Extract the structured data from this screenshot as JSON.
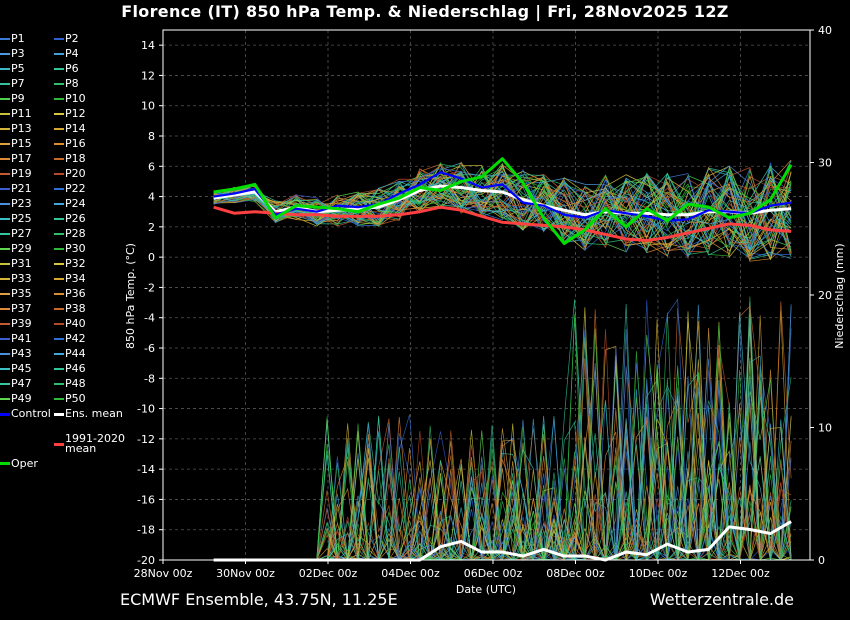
{
  "title": "Florence  (IT)  850 hPa Temp. & Niederschlag | Fri, 28Nov2025 12Z",
  "footer": {
    "left": "ECMWF Ensemble, 43.75N, 11.25E",
    "right": "Wetterzentrale.de"
  },
  "legend": [
    {
      "label": "P1",
      "color": "#3a7bd5"
    },
    {
      "label": "P2",
      "color": "#2f5fd0"
    },
    {
      "label": "P3",
      "color": "#4a9be0"
    },
    {
      "label": "P4",
      "color": "#3fa0d8"
    },
    {
      "label": "P5",
      "color": "#3cb8c8"
    },
    {
      "label": "P6",
      "color": "#2fc79a"
    },
    {
      "label": "P7",
      "color": "#35c0a0"
    },
    {
      "label": "P8",
      "color": "#2ebd6a"
    },
    {
      "label": "P9",
      "color": "#4fd04f"
    },
    {
      "label": "P10",
      "color": "#2fb93a"
    },
    {
      "label": "P11",
      "color": "#c8c23a"
    },
    {
      "label": "P12",
      "color": "#d4c640"
    },
    {
      "label": "P13",
      "color": "#d8b33a"
    },
    {
      "label": "P14",
      "color": "#d9a830"
    },
    {
      "label": "P15",
      "color": "#e0a040"
    },
    {
      "label": "P16",
      "color": "#d88c30"
    },
    {
      "label": "P17",
      "color": "#e08a3a"
    },
    {
      "label": "P18",
      "color": "#c96a28"
    },
    {
      "label": "P19",
      "color": "#c85a30"
    },
    {
      "label": "P20",
      "color": "#b54a2a"
    },
    {
      "label": "P21",
      "color": "#3a5fd0"
    },
    {
      "label": "P22",
      "color": "#2f6fd8"
    },
    {
      "label": "P23",
      "color": "#4a8fe0"
    },
    {
      "label": "P24",
      "color": "#3fa8d8"
    },
    {
      "label": "P25",
      "color": "#3cc0c8"
    },
    {
      "label": "P26",
      "color": "#2fc79a"
    },
    {
      "label": "P27",
      "color": "#35c8a0"
    },
    {
      "label": "P28",
      "color": "#2ebd6a"
    },
    {
      "label": "P29",
      "color": "#5fd84f"
    },
    {
      "label": "P30",
      "color": "#2fb93a"
    },
    {
      "label": "P31",
      "color": "#c8c23a"
    },
    {
      "label": "P32",
      "color": "#d4c640"
    },
    {
      "label": "P33",
      "color": "#d8b33a"
    },
    {
      "label": "P34",
      "color": "#d9a830"
    },
    {
      "label": "P35",
      "color": "#e0a040"
    },
    {
      "label": "P36",
      "color": "#d88c30"
    },
    {
      "label": "P37",
      "color": "#e08a3a"
    },
    {
      "label": "P38",
      "color": "#c96a28"
    },
    {
      "label": "P39",
      "color": "#c85a30"
    },
    {
      "label": "P40",
      "color": "#b54a2a"
    },
    {
      "label": "P41",
      "color": "#3a5fd0"
    },
    {
      "label": "P42",
      "color": "#2f6fd8"
    },
    {
      "label": "P43",
      "color": "#4a8fe0"
    },
    {
      "label": "P44",
      "color": "#3fa8d8"
    },
    {
      "label": "P45",
      "color": "#3cc0c8"
    },
    {
      "label": "P46",
      "color": "#2fc79a"
    },
    {
      "label": "P47",
      "color": "#35c8a0"
    },
    {
      "label": "P48",
      "color": "#2ebd6a"
    },
    {
      "label": "P49",
      "color": "#5fd84f"
    },
    {
      "label": "P50",
      "color": "#2fb93a"
    },
    {
      "label": "Control",
      "color": "#0000ff"
    },
    {
      "label": "Ens. mean",
      "color": "#ffffff"
    },
    {
      "label": "1991-2020\nmean",
      "color": "#ff4040"
    },
    {
      "label": "Oper",
      "color": "#00dd00"
    }
  ],
  "chart_data": {
    "type": "line",
    "xlabel": "Date (UTC)",
    "ylabel": "850 hPa Temp. (°C)",
    "y2label": "Niederschlag (mm)",
    "xticks": [
      "28Nov 00z",
      "30Nov 00z",
      "02Dec 00z",
      "04Dec 00z",
      "06Dec 00z",
      "08Dec 00z",
      "10Dec 00z",
      "12Dec 00z"
    ],
    "xlim_days": [
      0,
      14.8
    ],
    "ylim": [
      -20,
      15
    ],
    "yticks": [
      14,
      12,
      10,
      8,
      6,
      4,
      2,
      0,
      -2,
      -4,
      -6,
      -8,
      -10,
      -12,
      -14,
      -16,
      -18,
      -20
    ],
    "y2lim": [
      0,
      40
    ],
    "y2ticks": [
      40,
      30,
      20,
      10,
      0
    ],
    "grid": true,
    "series": [
      {
        "name": "Ens. mean",
        "color": "#ffffff",
        "x": [
          0.5,
          1.0,
          1.5,
          2.0,
          2.5,
          3.0,
          3.5,
          4.0,
          4.5,
          5.0,
          5.5,
          6.0,
          6.5,
          7.0,
          7.5,
          8.0,
          8.5,
          9.0,
          9.5,
          10.0,
          10.5,
          11.0,
          11.5,
          12.0,
          12.5,
          13.0,
          13.5,
          14.0,
          14.5
        ],
        "y": [
          3.9,
          4.1,
          4.3,
          3.0,
          3.3,
          3.0,
          3.1,
          3.2,
          3.3,
          3.8,
          4.4,
          4.7,
          4.6,
          4.4,
          4.3,
          3.8,
          3.4,
          3.1,
          2.8,
          3.0,
          2.9,
          2.9,
          2.8,
          2.8,
          3.0,
          3.0,
          2.9,
          3.1,
          3.2
        ]
      },
      {
        "name": "1991-2020\nmean",
        "color": "#ff4040",
        "x": [
          0.5,
          1.0,
          1.5,
          2.0,
          2.5,
          3.0,
          3.5,
          4.0,
          4.5,
          5.0,
          5.5,
          6.0,
          6.5,
          7.0,
          7.5,
          8.0,
          8.5,
          9.0,
          9.5,
          10.0,
          10.5,
          11.0,
          11.5,
          12.0,
          12.5,
          13.0,
          13.5,
          14.0,
          14.5
        ],
        "y": [
          3.3,
          2.9,
          3.0,
          2.9,
          2.8,
          2.8,
          2.7,
          2.7,
          2.7,
          2.8,
          3.0,
          3.3,
          3.1,
          2.7,
          2.3,
          2.2,
          2.1,
          2.0,
          1.8,
          1.5,
          1.2,
          1.1,
          1.3,
          1.6,
          1.9,
          2.2,
          2.1,
          1.8,
          1.7
        ]
      },
      {
        "name": "Control",
        "color": "#0000ff",
        "x": [
          0.5,
          1.0,
          1.5,
          2.0,
          2.5,
          3.0,
          3.5,
          4.0,
          4.5,
          5.0,
          5.5,
          6.0,
          6.5,
          7.0,
          7.5,
          8.0,
          8.5,
          9.0,
          9.5,
          10.0,
          10.5,
          11.0,
          11.5,
          12.0,
          12.5,
          13.0,
          13.5,
          14.0,
          14.5
        ],
        "y": [
          4.0,
          4.2,
          4.5,
          2.8,
          3.2,
          3.0,
          3.4,
          3.3,
          3.5,
          4.2,
          4.8,
          5.6,
          5.2,
          4.6,
          4.8,
          3.6,
          3.4,
          2.8,
          2.6,
          3.1,
          2.9,
          2.7,
          2.4,
          2.5,
          3.1,
          3.0,
          2.9,
          3.4,
          3.6
        ]
      },
      {
        "name": "Oper",
        "color": "#00dd00",
        "x": [
          0.5,
          1.0,
          1.5,
          2.0,
          2.5,
          3.0,
          3.5,
          4.0,
          4.5,
          5.0,
          5.5,
          6.0,
          6.5,
          7.0,
          7.5,
          8.0,
          8.5,
          9.0,
          9.5,
          10.0,
          10.5,
          11.0,
          11.5,
          12.0,
          12.5,
          13.0,
          13.5,
          14.0,
          14.5
        ],
        "y": [
          4.3,
          4.5,
          4.8,
          2.6,
          3.4,
          3.3,
          3.2,
          3.0,
          3.5,
          3.9,
          4.6,
          4.4,
          5.0,
          5.3,
          6.5,
          4.9,
          2.6,
          0.9,
          1.8,
          3.2,
          2.0,
          3.2,
          2.4,
          3.5,
          3.3,
          2.6,
          2.9,
          3.8,
          6.1
        ]
      },
      {
        "name": "Ens. mean",
        "color": "#ffffff",
        "x": [
          0.5,
          1.5,
          2.5,
          3.0,
          3.5,
          4.0,
          4.5,
          5.0,
          5.5,
          6.0,
          6.5,
          7.0,
          7.5,
          8.0,
          8.5,
          9.0,
          9.5,
          10.0,
          10.5,
          11.0,
          11.5,
          12.0,
          12.5,
          13.0,
          13.5,
          14.0,
          14.5
        ],
        "y": [
          0.0,
          0.0,
          0.0,
          0.0,
          0.0,
          0.0,
          0.0,
          0.0,
          0.0,
          1.0,
          1.4,
          0.6,
          0.6,
          0.3,
          0.8,
          0.3,
          0.3,
          0.0,
          0.6,
          0.4,
          1.2,
          0.6,
          0.8,
          2.5,
          2.3,
          2.0,
          2.9
        ],
        "axis": "y2"
      }
    ]
  }
}
